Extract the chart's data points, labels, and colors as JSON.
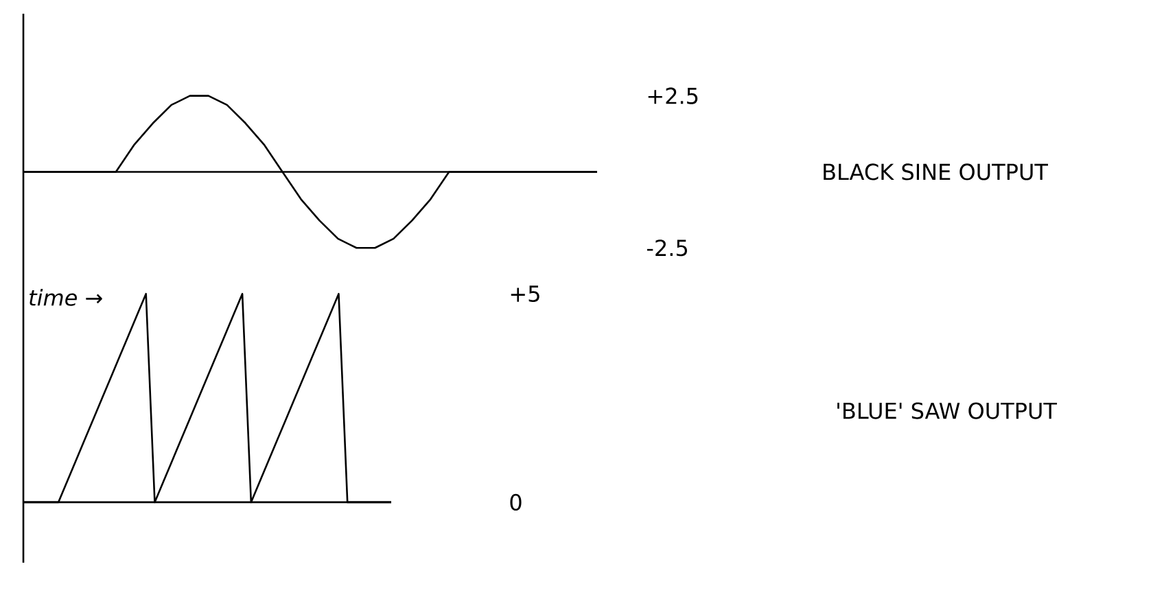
{
  "chart_data": [
    {
      "type": "line",
      "xlabel": "time →",
      "categories": [
        null,
        null,
        null,
        null,
        null,
        null,
        null,
        null,
        null,
        null,
        null,
        null,
        null,
        null,
        null,
        null,
        null,
        null,
        null,
        null,
        null,
        null,
        null,
        null,
        null,
        null,
        null,
        null,
        null,
        null,
        null,
        null
      ],
      "series": [
        {
          "name": "BLACK SINE OUTPUT",
          "color": "#000000",
          "values": [
            0,
            0,
            0,
            0,
            0,
            0,
            0.9,
            1.6,
            2.2,
            2.5,
            2.5,
            2.2,
            1.6,
            0.9,
            0,
            -0.9,
            -1.6,
            -2.2,
            -2.5,
            -2.5,
            -2.2,
            -1.6,
            -0.9,
            0,
            0,
            0,
            0,
            0,
            0,
            0,
            0,
            0
          ]
        }
      ],
      "ylim": [
        -3.6,
        5.2
      ],
      "yticks": [
        {
          "value": 2.5,
          "label": "+2.5"
        },
        {
          "value": -2.5,
          "label": "-2.5"
        }
      ],
      "tick_labels": "y",
      "marker": "none",
      "line_style": "solid"
    },
    {
      "type": "line",
      "categories": [
        null,
        null,
        null,
        null,
        null,
        null,
        null,
        null,
        null,
        null,
        null,
        null,
        null,
        null,
        null,
        null,
        null,
        null,
        null,
        null,
        null,
        null,
        null,
        null,
        null,
        null,
        null,
        null,
        null,
        null,
        null,
        null,
        null,
        null,
        null,
        null,
        null,
        null,
        null,
        null,
        null,
        null,
        null
      ],
      "series": [
        {
          "name": "'BLUE' SAW OUTPUT",
          "color": "#000000",
          "values": [
            0,
            0,
            0,
            0,
            0,
            0.5,
            1,
            1.5,
            2,
            2.5,
            3,
            3.5,
            4,
            4.5,
            5,
            0,
            0.5,
            1,
            1.5,
            2,
            2.5,
            3,
            3.5,
            4,
            4.5,
            5,
            0,
            0.5,
            1,
            1.5,
            2,
            2.5,
            3,
            3.5,
            4,
            4.5,
            5,
            0,
            0,
            0,
            0,
            0,
            0
          ]
        }
      ],
      "ylim": [
        -1.45,
        5.3
      ],
      "yticks": [
        {
          "value": 5,
          "label": "+5"
        },
        0
      ],
      "tick_labels": "y",
      "marker": "none",
      "line_style": "solid"
    }
  ]
}
